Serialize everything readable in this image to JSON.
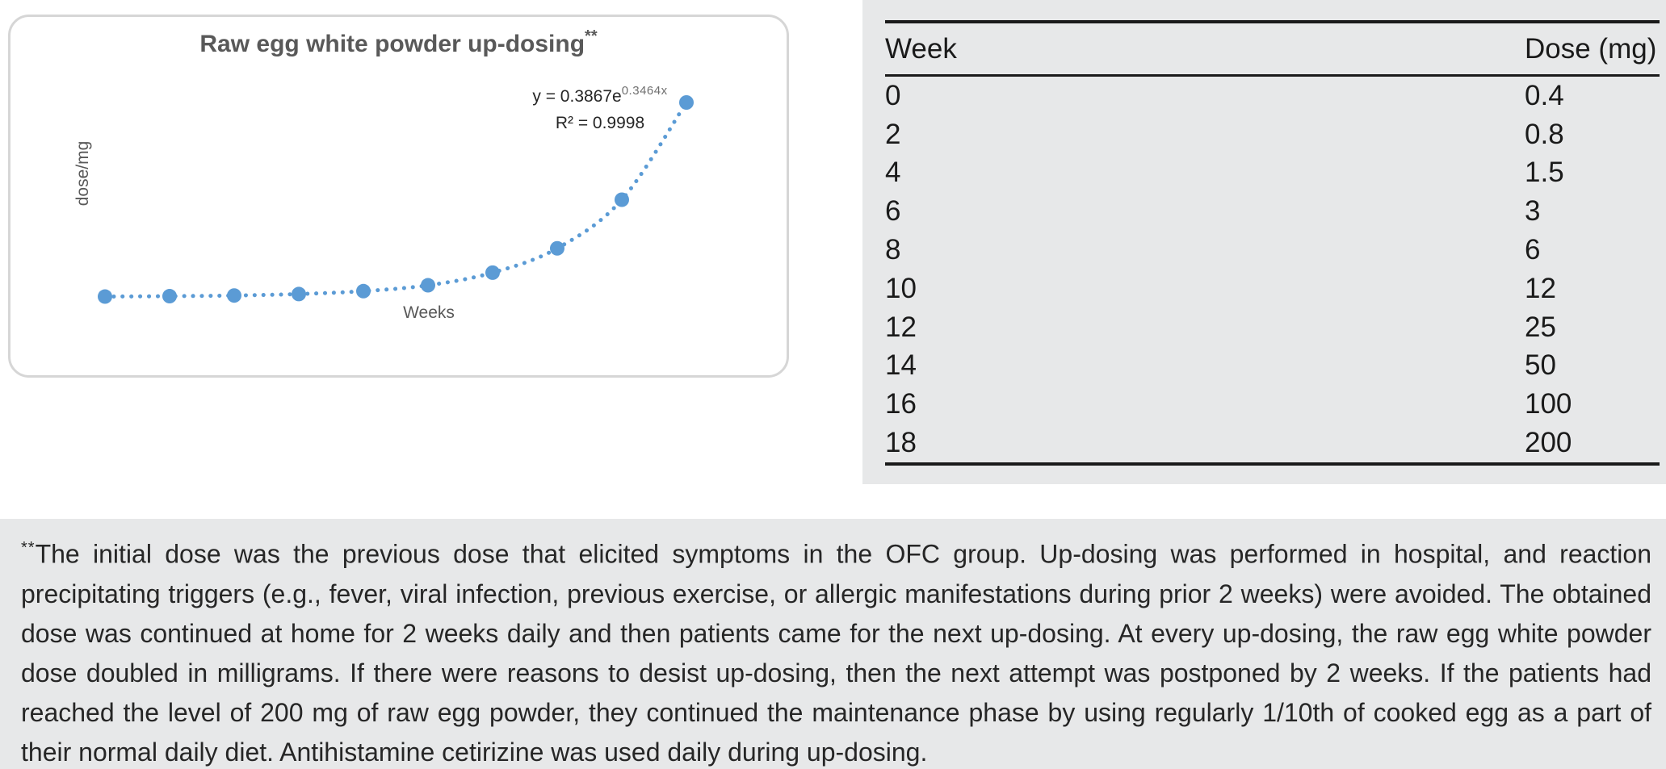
{
  "chart": {
    "title": "Raw egg white powder up-dosing",
    "title_marker": "**",
    "equation_prefix": "y = 0.3867e",
    "equation_exponent": "0.3464x",
    "r_squared_label": "R² = 0.9998",
    "x_axis_label": "Weeks",
    "y_axis_label": "dose/mg",
    "point_color": "#5B9BD5",
    "title_color": "#595959"
  },
  "chart_data": {
    "type": "scatter",
    "x": [
      0,
      2,
      4,
      6,
      8,
      10,
      12,
      14,
      16,
      18
    ],
    "y": [
      0.4,
      0.8,
      1.5,
      3,
      6,
      12,
      25,
      50,
      100,
      200
    ],
    "title": "Raw egg white powder up-dosing**",
    "xlabel": "Weeks",
    "ylabel": "dose/mg",
    "xlim": [
      -2,
      20
    ],
    "ylim": [
      0,
      290
    ],
    "grid": false,
    "legend": "none",
    "line_style": "dotted-smooth",
    "marker": "circle",
    "trendline_equation": "y = 0.3867e^0.3464x",
    "r_squared": 0.9998
  },
  "table": {
    "columns": [
      "Week",
      "Dose (mg)"
    ],
    "rows": [
      [
        "0",
        "0.4"
      ],
      [
        "2",
        "0.8"
      ],
      [
        "4",
        "1.5"
      ],
      [
        "6",
        "3"
      ],
      [
        "8",
        "6"
      ],
      [
        "10",
        "12"
      ],
      [
        "12",
        "25"
      ],
      [
        "14",
        "50"
      ],
      [
        "16",
        "100"
      ],
      [
        "18",
        "200"
      ]
    ]
  },
  "footnote": {
    "marker": "**",
    "text": "The initial dose was the previous dose that elicited symptoms in the OFC group. Up-dosing was performed in hospital, and reaction precipitating triggers (e.g., fever, viral infection, previous exercise, or allergic manifestations during prior 2 weeks) were avoided. The obtained dose was continued at home for 2 weeks daily and then patients came for the next up-dosing. At every up-dosing, the raw egg white powder dose doubled in milligrams. If there were reasons to desist up-dosing, then the next attempt was postponed by 2 weeks. If the patients had reached the level of 200 mg of raw egg powder, they continued the maintenance phase by using regularly 1/10th of cooked egg as a part of their normal daily diet. Antihistamine cetirizine was used daily during up-dosing."
  },
  "colors": {
    "panel_background": "#e7e8e9",
    "series_blue": "#5B9BD5",
    "table_rule": "#1a1a1a",
    "chart_border": "#d6d6d6"
  }
}
